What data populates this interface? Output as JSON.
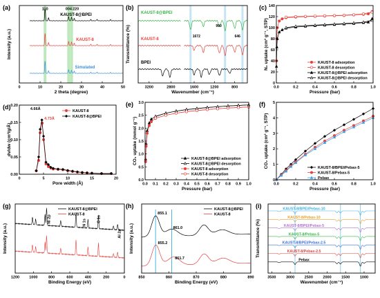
{
  "chart_data": [
    {
      "panel": "(a)",
      "type": "line",
      "xlabel": "2 theta (degree)",
      "ylabel": "Intensity (a.u.)",
      "xlim": [
        0,
        50
      ],
      "xticks": [
        0,
        10,
        20,
        30,
        40,
        50
      ],
      "peak_labels": [
        "110",
        "004",
        "220"
      ],
      "peak_positions": [
        12.4,
        23.8,
        25.2
      ],
      "series": [
        {
          "name": "KAUST-8@BPEI",
          "color": "#000000",
          "peaks": [
            [
              12.4,
              1.0
            ],
            [
              14.1,
              0.25
            ],
            [
              23.8,
              0.35
            ],
            [
              25.2,
              0.3
            ],
            [
              26.5,
              0.2
            ],
            [
              34.5,
              0.1
            ],
            [
              37.5,
              0.12
            ],
            [
              44.0,
              0.08
            ]
          ]
        },
        {
          "name": "KAUST-8",
          "color": "#e8413c",
          "peaks": [
            [
              12.4,
              1.0
            ],
            [
              14.1,
              0.25
            ],
            [
              23.8,
              0.35
            ],
            [
              25.2,
              0.3
            ],
            [
              26.5,
              0.2
            ],
            [
              34.5,
              0.1
            ],
            [
              37.5,
              0.12
            ],
            [
              44.0,
              0.08
            ]
          ]
        },
        {
          "name": "Simulated",
          "color": "#3a8fd9",
          "peaks": [
            [
              12.4,
              1.0
            ],
            [
              14.1,
              0.2
            ],
            [
              23.8,
              0.3
            ],
            [
              25.2,
              0.25
            ],
            [
              26.5,
              0.18
            ],
            [
              34.5,
              0.08
            ],
            [
              37.5,
              0.1
            ],
            [
              44.0,
              0.06
            ]
          ]
        }
      ]
    },
    {
      "panel": "(b)",
      "type": "line",
      "xlabel": "Wavenumber (cm⁻¹)",
      "ylabel": "Transmittance (%)",
      "xticks": [
        3200,
        2800,
        1600,
        1200,
        800
      ],
      "annotations": [
        "1672",
        "990",
        "646"
      ],
      "series": [
        {
          "name": "KAUST-8@BPEI",
          "color": "#39b54a"
        },
        {
          "name": "KAUST-8",
          "color": "#e8413c"
        },
        {
          "name": "BPEI",
          "color": "#000000"
        }
      ]
    },
    {
      "panel": "(c)",
      "type": "line",
      "xlabel": "Pressure (bar)",
      "ylabel": "N₂ uptake (cm³ g⁻¹, STP)",
      "xlim": [
        0,
        1.0
      ],
      "ylim": [
        0,
        140
      ],
      "xticks": [
        0.0,
        0.2,
        0.4,
        0.6,
        0.8,
        1.0
      ],
      "yticks": [
        0,
        20,
        40,
        60,
        80,
        100,
        120,
        140
      ],
      "series": [
        {
          "name": "KAUST-8 adsorption",
          "color": "#e8413c",
          "marker": "filled-circle",
          "x": [
            0.001,
            0.005,
            0.01,
            0.03,
            0.06,
            0.1,
            0.2,
            0.3,
            0.4,
            0.5,
            0.6,
            0.7,
            0.8,
            0.9,
            0.95,
            0.99
          ],
          "values": [
            40,
            80,
            100,
            112,
            116,
            118,
            119,
            120,
            120.5,
            121,
            121.5,
            122,
            123,
            124,
            125,
            129
          ]
        },
        {
          "name": "KAUST-8 desorption",
          "color": "#e8413c",
          "marker": "open-circle",
          "x": [
            0.99,
            0.9,
            0.8,
            0.7,
            0.6,
            0.5,
            0.4,
            0.3,
            0.2,
            0.1
          ],
          "values": [
            128,
            125,
            123.5,
            122.5,
            122,
            121.5,
            121,
            120.5,
            120,
            119
          ]
        },
        {
          "name": "KAUST-8@BPEI adsorption",
          "color": "#000000",
          "marker": "filled-triangle",
          "x": [
            0.001,
            0.005,
            0.01,
            0.03,
            0.06,
            0.1,
            0.2,
            0.3,
            0.4,
            0.5,
            0.6,
            0.7,
            0.8,
            0.9,
            0.95,
            0.99
          ],
          "values": [
            30,
            65,
            80,
            92,
            96,
            99,
            101,
            102.5,
            103.5,
            104.5,
            105.5,
            106.5,
            107.5,
            109,
            110,
            116
          ]
        },
        {
          "name": "KAUST-8@BPEI desorption",
          "color": "#000000",
          "marker": "open-triangle",
          "x": [
            0.99,
            0.9,
            0.8,
            0.7,
            0.6,
            0.5,
            0.4,
            0.3,
            0.2,
            0.1
          ],
          "values": [
            113,
            110,
            108.5,
            107.5,
            106.5,
            105.5,
            104.5,
            103.5,
            102.5,
            100
          ]
        }
      ]
    },
    {
      "panel": "(d)",
      "type": "line",
      "xlabel": "Pore width (Å)",
      "ylabel": "dv/dw (cm³/g/Å)",
      "xlim": [
        0,
        20
      ],
      "ylim": [
        0,
        0.2
      ],
      "xticks": [
        0,
        5,
        10,
        15,
        20
      ],
      "yticks": [
        0.0,
        0.05,
        0.1,
        0.15,
        0.2
      ],
      "annotations": [
        "4.66Å",
        "4.73Å"
      ],
      "series": [
        {
          "name": "KAUST-8",
          "color": "#e8413c",
          "marker": "filled-circle",
          "x": [
            3.5,
            4.0,
            4.3,
            4.73,
            5.0,
            5.5,
            6.0,
            6.5,
            7.0,
            8.0,
            9.0,
            10.0,
            11.0,
            12.0,
            13.0,
            14.0,
            15.0,
            17.0,
            19.0
          ],
          "values": [
            0.01,
            0.04,
            0.12,
            0.148,
            0.1,
            0.03,
            0.022,
            0.018,
            0.015,
            0.014,
            0.013,
            0.01,
            0.008,
            0.006,
            0.005,
            0.004,
            0.003,
            0.002,
            0.002
          ]
        },
        {
          "name": "KAUST-8@BPEI",
          "color": "#000000",
          "marker": "filled-diamond",
          "x": [
            3.5,
            4.0,
            4.3,
            4.66,
            5.0,
            5.5,
            6.0,
            6.5,
            7.0,
            8.0,
            9.0,
            10.0,
            11.0,
            12.0,
            13.0,
            14.0,
            15.0,
            17.0,
            19.0
          ],
          "values": [
            0.01,
            0.05,
            0.13,
            0.157,
            0.11,
            0.035,
            0.028,
            0.02,
            0.017,
            0.015,
            0.014,
            0.011,
            0.009,
            0.007,
            0.005,
            0.004,
            0.003,
            0.002,
            0.002
          ]
        }
      ]
    },
    {
      "panel": "(e)",
      "type": "line",
      "xlabel": "Pressure (bar)",
      "ylabel": "CO₂ uptake (mmol g⁻¹)",
      "xlim": [
        0,
        1.0
      ],
      "ylim": [
        0,
        3.0
      ],
      "xticks": [
        0.0,
        0.1,
        0.2,
        0.3,
        0.4,
        0.5,
        0.6,
        0.7,
        0.8,
        0.9,
        1.0
      ],
      "yticks": [
        0.0,
        0.5,
        1.0,
        1.5,
        2.0,
        2.5,
        3.0
      ],
      "series": [
        {
          "name": "KAUST-8@BPEI adsorption",
          "color": "#000000",
          "marker": "filled-triangle",
          "x": [
            0.005,
            0.01,
            0.02,
            0.04,
            0.06,
            0.1,
            0.2,
            0.3,
            0.4,
            0.5,
            0.6,
            0.7,
            0.8,
            0.9,
            1.0
          ],
          "values": [
            0.8,
            1.4,
            1.9,
            2.2,
            2.35,
            2.45,
            2.58,
            2.66,
            2.72,
            2.76,
            2.8,
            2.83,
            2.86,
            2.88,
            2.9
          ]
        },
        {
          "name": "KAUST-8@BPEI desorption",
          "color": "#000000",
          "marker": "open-triangle",
          "x": [
            1.0,
            0.9,
            0.8,
            0.7,
            0.6,
            0.5,
            0.4,
            0.3,
            0.2,
            0.1
          ],
          "values": [
            2.9,
            2.88,
            2.86,
            2.83,
            2.8,
            2.76,
            2.72,
            2.66,
            2.58,
            2.46
          ]
        },
        {
          "name": "KAUST-8 adsorption",
          "color": "#e8413c",
          "marker": "filled-circle",
          "x": [
            0.005,
            0.01,
            0.02,
            0.04,
            0.06,
            0.1,
            0.2,
            0.3,
            0.4,
            0.5,
            0.6,
            0.7,
            0.8,
            0.9,
            1.0
          ],
          "values": [
            0.7,
            1.3,
            1.8,
            2.1,
            2.25,
            2.38,
            2.5,
            2.58,
            2.64,
            2.68,
            2.72,
            2.75,
            2.78,
            2.8,
            2.82
          ]
        },
        {
          "name": "KAUST-8 desorption",
          "color": "#e8413c",
          "marker": "open-circle",
          "x": [
            1.0,
            0.9,
            0.8,
            0.7,
            0.6,
            0.5,
            0.4,
            0.3,
            0.2,
            0.1
          ],
          "values": [
            2.82,
            2.8,
            2.78,
            2.75,
            2.72,
            2.68,
            2.64,
            2.58,
            2.5,
            2.39
          ]
        }
      ]
    },
    {
      "panel": "(f)",
      "type": "line",
      "xlabel": "Pressure (bar)",
      "ylabel": "CO₂ uptake (cm³ g⁻¹, STP)",
      "xlim": [
        0,
        1.0
      ],
      "ylim": [
        0,
        5
      ],
      "xticks": [
        0.0,
        0.2,
        0.4,
        0.6,
        0.8,
        1.0
      ],
      "yticks": [
        0,
        1,
        2,
        3,
        4,
        5
      ],
      "series": [
        {
          "name": "KAUST-8/BPEI/Pebax-5",
          "color": "#000000",
          "marker": "filled-diamond",
          "x": [
            0.0,
            0.05,
            0.1,
            0.15,
            0.2,
            0.3,
            0.4,
            0.5,
            0.6,
            0.7,
            0.8,
            0.9,
            1.0
          ],
          "values": [
            0.0,
            0.35,
            0.7,
            1.0,
            1.3,
            1.85,
            2.35,
            2.8,
            3.2,
            3.55,
            3.9,
            4.25,
            4.6
          ]
        },
        {
          "name": "KAUST-8/Pebax-5",
          "color": "#e8413c",
          "marker": "filled-circle",
          "x": [
            0.0,
            0.05,
            0.1,
            0.15,
            0.2,
            0.3,
            0.4,
            0.5,
            0.6,
            0.7,
            0.8,
            0.9,
            1.0
          ],
          "values": [
            0.0,
            0.3,
            0.6,
            0.9,
            1.15,
            1.65,
            2.1,
            2.5,
            2.85,
            3.2,
            3.5,
            3.8,
            4.1
          ]
        },
        {
          "name": "Pebax",
          "color": "#3aa0e8",
          "marker": "filled-triangle",
          "x": [
            0.0,
            0.05,
            0.1,
            0.15,
            0.2,
            0.3,
            0.4,
            0.5,
            0.6,
            0.7,
            0.8,
            0.9,
            1.0
          ],
          "values": [
            0.0,
            0.28,
            0.55,
            0.85,
            1.1,
            1.6,
            2.0,
            2.4,
            2.75,
            3.1,
            3.4,
            3.7,
            4.0
          ]
        }
      ]
    },
    {
      "panel": "(g)",
      "type": "line",
      "xlabel": "Binding Energy (eV)",
      "ylabel": "Intensity (a.u.)",
      "xticks": [
        1200,
        1000,
        800,
        600,
        400,
        200,
        0
      ],
      "annotations": [
        "Ni 2p",
        "N 1s",
        "C 1s",
        "Al 2p"
      ],
      "series": [
        {
          "name": "KAUST-8@BPEI",
          "color": "#000000"
        },
        {
          "name": "KAUST-8",
          "color": "#e8413c"
        }
      ]
    },
    {
      "panel": "(h)",
      "type": "line",
      "xlabel": "Binding Energy (eV)",
      "ylabel": "Intensity (a.u.)",
      "xlim": [
        850,
        890
      ],
      "xticks": [
        850,
        860,
        870,
        880,
        890
      ],
      "annotations": [
        "855.1",
        "861.0",
        "855.2",
        "861.7"
      ],
      "series": [
        {
          "name": "KAUST-8@BPEI",
          "color": "#000000"
        },
        {
          "name": "KAUST-8",
          "color": "#e8413c"
        }
      ]
    },
    {
      "panel": "(i)",
      "type": "line",
      "xlabel": "Wavenumber (cm⁻¹)",
      "ylabel": "Transmittance (%)",
      "xticks": [
        3500,
        3000,
        2500,
        2000,
        1500,
        1000
      ],
      "series": [
        {
          "name": "KAUST-8/BPEI/Pebax-10",
          "color": "#3ab0e0"
        },
        {
          "name": "KAUST-8/Pebax-10",
          "color": "#e8a030"
        },
        {
          "name": "KAUST-8/BPEI/Pebax-5",
          "color": "#b070d0"
        },
        {
          "name": "KAUST-8/Pebax-5",
          "color": "#39b54a"
        },
        {
          "name": "KAUST-8/BPEI/Pebax-2.5",
          "color": "#3a6fd9"
        },
        {
          "name": "KAUST-8/Pebax-2.5",
          "color": "#e8413c"
        },
        {
          "name": "Pebax",
          "color": "#000000"
        }
      ]
    }
  ]
}
